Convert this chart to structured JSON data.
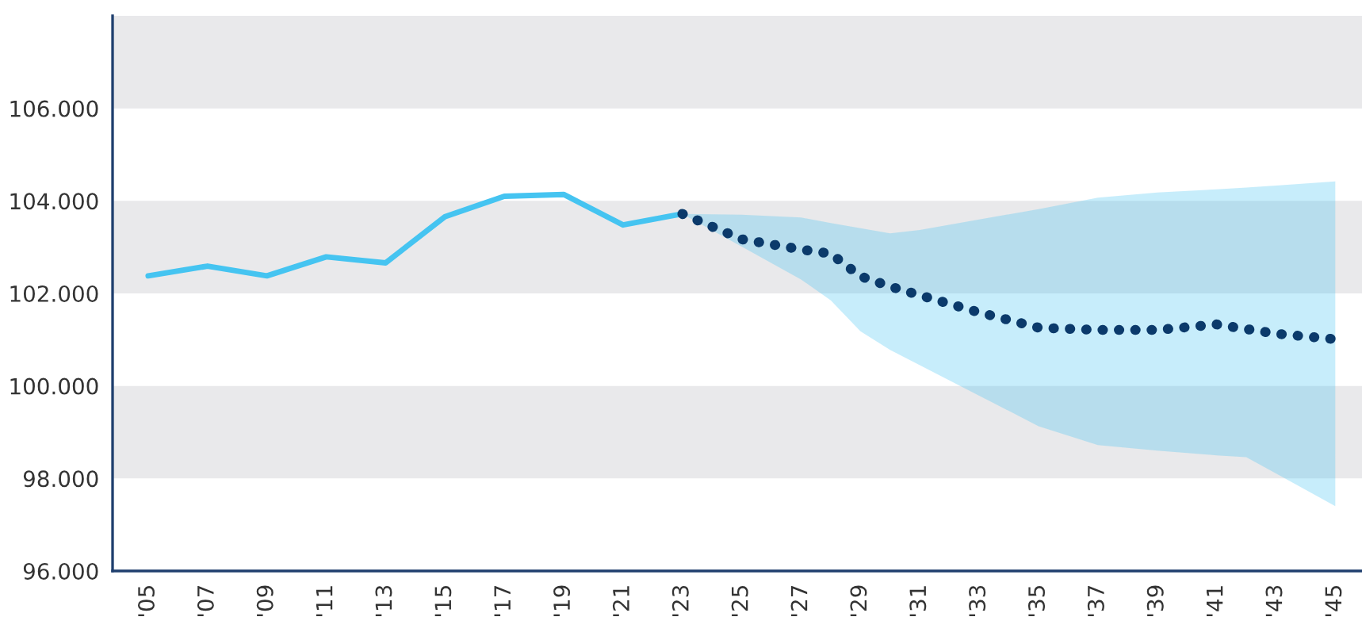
{
  "chart_data": {
    "type": "line",
    "xlim": [
      2003.8,
      2045.9
    ],
    "ylim": [
      96000,
      108000
    ],
    "xticks": [
      {
        "value": 2005,
        "label": "'05"
      },
      {
        "value": 2007,
        "label": "'07"
      },
      {
        "value": 2009,
        "label": "'09"
      },
      {
        "value": 2011,
        "label": "'11"
      },
      {
        "value": 2013,
        "label": "'13"
      },
      {
        "value": 2015,
        "label": "'15"
      },
      {
        "value": 2017,
        "label": "'17"
      },
      {
        "value": 2019,
        "label": "'19"
      },
      {
        "value": 2021,
        "label": "'21"
      },
      {
        "value": 2023,
        "label": "'23"
      },
      {
        "value": 2025,
        "label": "'25"
      },
      {
        "value": 2027,
        "label": "'27"
      },
      {
        "value": 2029,
        "label": "'29"
      },
      {
        "value": 2031,
        "label": "'31"
      },
      {
        "value": 2033,
        "label": "'33"
      },
      {
        "value": 2035,
        "label": "'35"
      },
      {
        "value": 2037,
        "label": "'37"
      },
      {
        "value": 2039,
        "label": "'39"
      },
      {
        "value": 2041,
        "label": "'41"
      },
      {
        "value": 2043,
        "label": "'43"
      },
      {
        "value": 2045,
        "label": "'45"
      }
    ],
    "yticks": [
      {
        "value": 96000,
        "label": "96.000"
      },
      {
        "value": 98000,
        "label": "98.000"
      },
      {
        "value": 100000,
        "label": "100.000"
      },
      {
        "value": 102000,
        "label": "102.000"
      },
      {
        "value": 104000,
        "label": "104.000"
      },
      {
        "value": 106000,
        "label": "106.000"
      }
    ],
    "grid": false,
    "bands": [
      {
        "axis": "y",
        "from": 98000,
        "to": 100000,
        "color": "#e9e9eb"
      },
      {
        "axis": "y",
        "from": 102000,
        "to": 104000,
        "color": "#e9e9eb"
      },
      {
        "axis": "y",
        "from": 106000,
        "to": 108000,
        "color": "#e9e9eb"
      }
    ],
    "series": [
      {
        "color": "#45c4f1",
        "line_style": "solid",
        "x": [
          2005,
          2007,
          2009,
          2011,
          2013,
          2015,
          2017,
          2019,
          2021,
          2023
        ],
        "values": [
          102380,
          102590,
          102380,
          102790,
          102660,
          103660,
          104100,
          104140,
          103480,
          103720
        ]
      },
      {
        "color": "#0b3a6b",
        "line_style": "dotted",
        "x": [
          2023,
          2025,
          2027,
          2028,
          2029,
          2030,
          2031,
          2033,
          2035,
          2037,
          2039,
          2041,
          2042,
          2043,
          2045
        ],
        "values": [
          103720,
          103170,
          102950,
          102860,
          102370,
          102150,
          101960,
          101590,
          101260,
          101210,
          101210,
          101330,
          101230,
          101130,
          101010
        ],
        "upper": [
          103720,
          103700,
          103640,
          103520,
          103410,
          103300,
          103370,
          103600,
          103820,
          104070,
          104180,
          104250,
          104290,
          104330,
          104420
        ],
        "lower": [
          103720,
          103010,
          102300,
          101850,
          101180,
          100780,
          100450,
          99790,
          99130,
          98720,
          98600,
          98500,
          98460,
          98110,
          97400
        ]
      }
    ]
  }
}
